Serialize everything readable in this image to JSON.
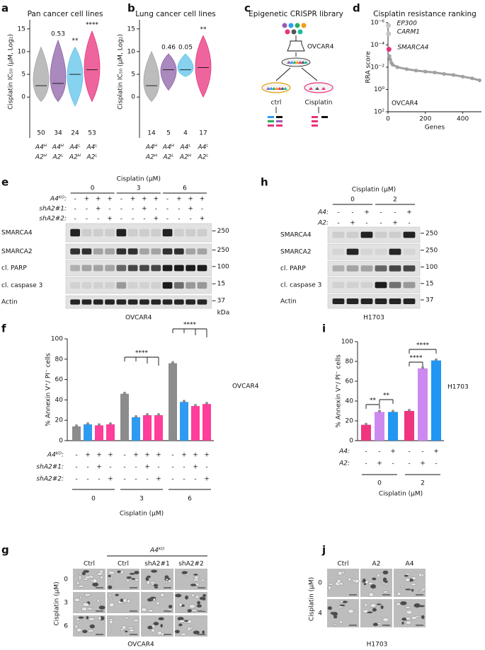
{
  "panels": {
    "a": {
      "label": "a",
      "title": "Pan cancer cell lines",
      "y_label": "Cisplatin IC₅₀ (μM, Log₂)",
      "ylim": [
        -9,
        17
      ],
      "yticks": [
        0,
        5,
        10,
        15
      ],
      "groups": [
        {
          "line1": "A4ᴴ",
          "line2": "A2ᴴ",
          "color": "#a6a6a6",
          "median": 2.5,
          "min": -1,
          "max": 11,
          "n": 50
        },
        {
          "line1": "A4ᴴ",
          "line2": "A2ᴸ",
          "color": "#8e62a8",
          "median": 3,
          "min": -1,
          "max": 12.5,
          "n": 34,
          "annotation": "0.53",
          "annotation_color": "#999999"
        },
        {
          "line1": "A4ᴸ",
          "line2": "A2ᴴ",
          "color": "#5fc3ea",
          "median": 5,
          "min": -2,
          "max": 11,
          "n": 24,
          "annotation": "**",
          "annotation_color": "#000000"
        },
        {
          "line1": "A4ᴸ",
          "line2": "A2ᴸ",
          "color": "#e8327c",
          "median": 6,
          "min": -1,
          "max": 14.5,
          "n": 53,
          "annotation": "****",
          "annotation_color": "#000000"
        }
      ]
    },
    "b": {
      "label": "b",
      "title": "Lung cancer cell lines",
      "y_label": "Cisplatin IC₅₀ (μM, Log₂)",
      "ylim": [
        -9,
        17
      ],
      "yticks": [
        0,
        5,
        10,
        15
      ],
      "groups": [
        {
          "line1": "A4ᴴ",
          "line2": "A2ᴴ",
          "color": "#a6a6a6",
          "median": 2.5,
          "min": -1,
          "max": 10,
          "n": 14
        },
        {
          "line1": "A4ᴴ",
          "line2": "A2ᴸ",
          "color": "#8e62a8",
          "median": 6,
          "min": 1.5,
          "max": 9.5,
          "n": 5,
          "annotation": "0.46",
          "annotation_color": "#999999"
        },
        {
          "line1": "A4ᴸ",
          "line2": "A2ᴴ",
          "color": "#5fc3ea",
          "median": 6,
          "min": 4.5,
          "max": 9.5,
          "n": 4,
          "annotation": "0.05",
          "annotation_color": "#000000"
        },
        {
          "line1": "A4ᴸ",
          "line2": "A2ᴸ",
          "color": "#e8327c",
          "median": 6.5,
          "min": 0,
          "max": 13.5,
          "n": 17,
          "annotation": "**",
          "annotation_color": "#000000"
        }
      ]
    },
    "c": {
      "label": "c",
      "title": "Epigenetic CRISPR library",
      "cell_line": "OVCAR4",
      "arms": [
        "ctrl",
        "Cisplatin"
      ]
    },
    "d": {
      "label": "d",
      "title": "Cisplatin resistance ranking",
      "y_label": "RRA score",
      "x_label": "Genes",
      "log_y": true,
      "ylim": [
        1e-06,
        100
      ],
      "yticks": [
        {
          "value": 1e-06,
          "label": "10⁻⁶"
        },
        {
          "value": 0.0001,
          "label": "10⁻⁴"
        },
        {
          "value": 0.01,
          "label": "10⁻²"
        },
        {
          "value": 1,
          "label": "10⁰"
        },
        {
          "value": 100,
          "label": "10²"
        }
      ],
      "xlim": [
        0,
        500
      ],
      "xticks": [
        0,
        200,
        400
      ],
      "color": "#a0a0a0",
      "x": [
        8,
        12,
        18,
        25,
        50,
        100,
        150,
        200,
        250,
        300,
        350,
        400,
        450,
        490
      ],
      "y": [
        0.001,
        0.002,
        0.004,
        0.006,
        0.01,
        0.015,
        0.02,
        0.025,
        0.03,
        0.04,
        0.05,
        0.07,
        0.1,
        0.15
      ],
      "highlights": [
        {
          "name": "EP300",
          "x": 2,
          "y": 1.8e-06,
          "color": "#c4c4c4"
        },
        {
          "name": "CARM1",
          "x": 3,
          "y": 1e-05,
          "color": "#c4c4c4"
        },
        {
          "name": "SMARCA4",
          "x": 5,
          "y": 0.00025,
          "color": "#e8327c"
        }
      ],
      "watermark": "OVCAR4"
    },
    "e": {
      "label": "e",
      "treatment": "Cisplatin (μM)",
      "doses": [
        0,
        3,
        6
      ],
      "conditions": [
        {
          "label": "A4ᴷᴼ:",
          "marks": [
            "-",
            "+",
            "+",
            "+",
            "-",
            "+",
            "+",
            "+",
            "-",
            "+",
            "+",
            "+"
          ]
        },
        {
          "label": "shA2#1:",
          "marks": [
            "-",
            "-",
            "+",
            "-",
            "-",
            "-",
            "+",
            "-",
            "-",
            "-",
            "+",
            "-"
          ]
        },
        {
          "label": "shA2#2:",
          "marks": [
            "-",
            "-",
            "-",
            "+",
            "-",
            "-",
            "-",
            "+",
            "-",
            "-",
            "-",
            "+"
          ]
        }
      ],
      "blots": [
        {
          "name": "SMARCA4",
          "mw": 250
        },
        {
          "name": "SMARCA2",
          "mw": 250
        },
        {
          "name": "cl. PARP",
          "mw": 100
        },
        {
          "name": "cl. caspase 3",
          "mw": 15
        },
        {
          "name": "Actin",
          "mw": 37
        }
      ],
      "mw_unit": "kDa",
      "cell_line": "OVCAR4"
    },
    "h": {
      "label": "h",
      "treatment": "Cisplatin (μM)",
      "doses": [
        0,
        2
      ],
      "conditions": [
        {
          "label": "A4:",
          "marks": [
            "-",
            "-",
            "+",
            "-",
            "-",
            "+"
          ]
        },
        {
          "label": "A2:",
          "marks": [
            "-",
            "+",
            "-",
            "-",
            "+",
            "-"
          ]
        }
      ],
      "blots": [
        {
          "name": "SMARCA4",
          "mw": 250
        },
        {
          "name": "SMARCA2",
          "mw": 250
        },
        {
          "name": "cl. PARP",
          "mw": 100
        },
        {
          "name": "cl. caspase 3",
          "mw": 15
        },
        {
          "name": "Actin",
          "mw": 37
        }
      ],
      "cell_line": "H1703"
    },
    "f": {
      "label": "f",
      "y_label": "% Annexin V⁺/ PI⁻ cells",
      "ylim": [
        0,
        100
      ],
      "yticks": [
        0,
        20,
        40,
        60,
        80,
        100
      ],
      "values": [
        14,
        16,
        15,
        16,
        46,
        23,
        25,
        25,
        76,
        38,
        34,
        36
      ],
      "colors": [
        "#8c8c8c",
        "#2e9bf0",
        "#ff3d9a",
        "#ff3d9a",
        "#8c8c8c",
        "#2e9bf0",
        "#ff3d9a",
        "#ff3d9a",
        "#8c8c8c",
        "#2e9bf0",
        "#ff3d9a",
        "#ff3d9a"
      ],
      "conditions": [
        {
          "label": "A4ᴷᴼ:",
          "marks": [
            "-",
            "+",
            "+",
            "+",
            "-",
            "+",
            "+",
            "+",
            "-",
            "+",
            "+",
            "+"
          ]
        },
        {
          "label": "shA2#1:",
          "marks": [
            "-",
            "-",
            "+",
            "-",
            "-",
            "-",
            "+",
            "-",
            "-",
            "-",
            "+",
            "-"
          ]
        },
        {
          "label": "shA2#2:",
          "marks": [
            "-",
            "-",
            "-",
            "+",
            "-",
            "-",
            "-",
            "+",
            "-",
            "-",
            "-",
            "+"
          ]
        }
      ],
      "doses": [
        0,
        3,
        6
      ],
      "x_label": "Cisplatin (μM)",
      "cell_line": "OVCAR4",
      "annotations": [
        "****",
        "****"
      ]
    },
    "i": {
      "label": "i",
      "y_label": "% Annexin V⁺/ PI⁻ cells",
      "ylim": [
        0,
        100
      ],
      "yticks": [
        0,
        20,
        40,
        60,
        80,
        100
      ],
      "values": [
        16,
        29,
        29,
        30,
        73,
        81
      ],
      "colors": [
        "#f0357f",
        "#cc8af0",
        "#2196f3",
        "#f0357f",
        "#cc8af0",
        "#2196f3"
      ],
      "conditions": [
        {
          "label": "A4:",
          "marks": [
            "-",
            "-",
            "+",
            "-",
            "-",
            "+"
          ]
        },
        {
          "label": "A2:",
          "marks": [
            "-",
            "+",
            "-",
            "-",
            "+",
            "-"
          ]
        }
      ],
      "doses": [
        0,
        2
      ],
      "x_label": "Cisplatin (μM)",
      "cell_line": "H1703",
      "annotations": [
        "**",
        "**",
        "****",
        "****"
      ]
    },
    "g": {
      "label": "g",
      "group_label": "A4ᴷᴼ",
      "columns": [
        "Ctrl",
        "Ctrl",
        "shA2#1",
        "shA2#2"
      ],
      "doses": [
        0,
        3,
        6
      ],
      "y_label": "Cisplatin (μM)",
      "cell_line": "OVCAR4"
    },
    "j": {
      "label": "j",
      "columns": [
        "Ctrl",
        "A2",
        "A4"
      ],
      "doses": [
        0,
        4
      ],
      "y_label": "Cisplatin (μM)",
      "cell_line": "H1703"
    }
  }
}
